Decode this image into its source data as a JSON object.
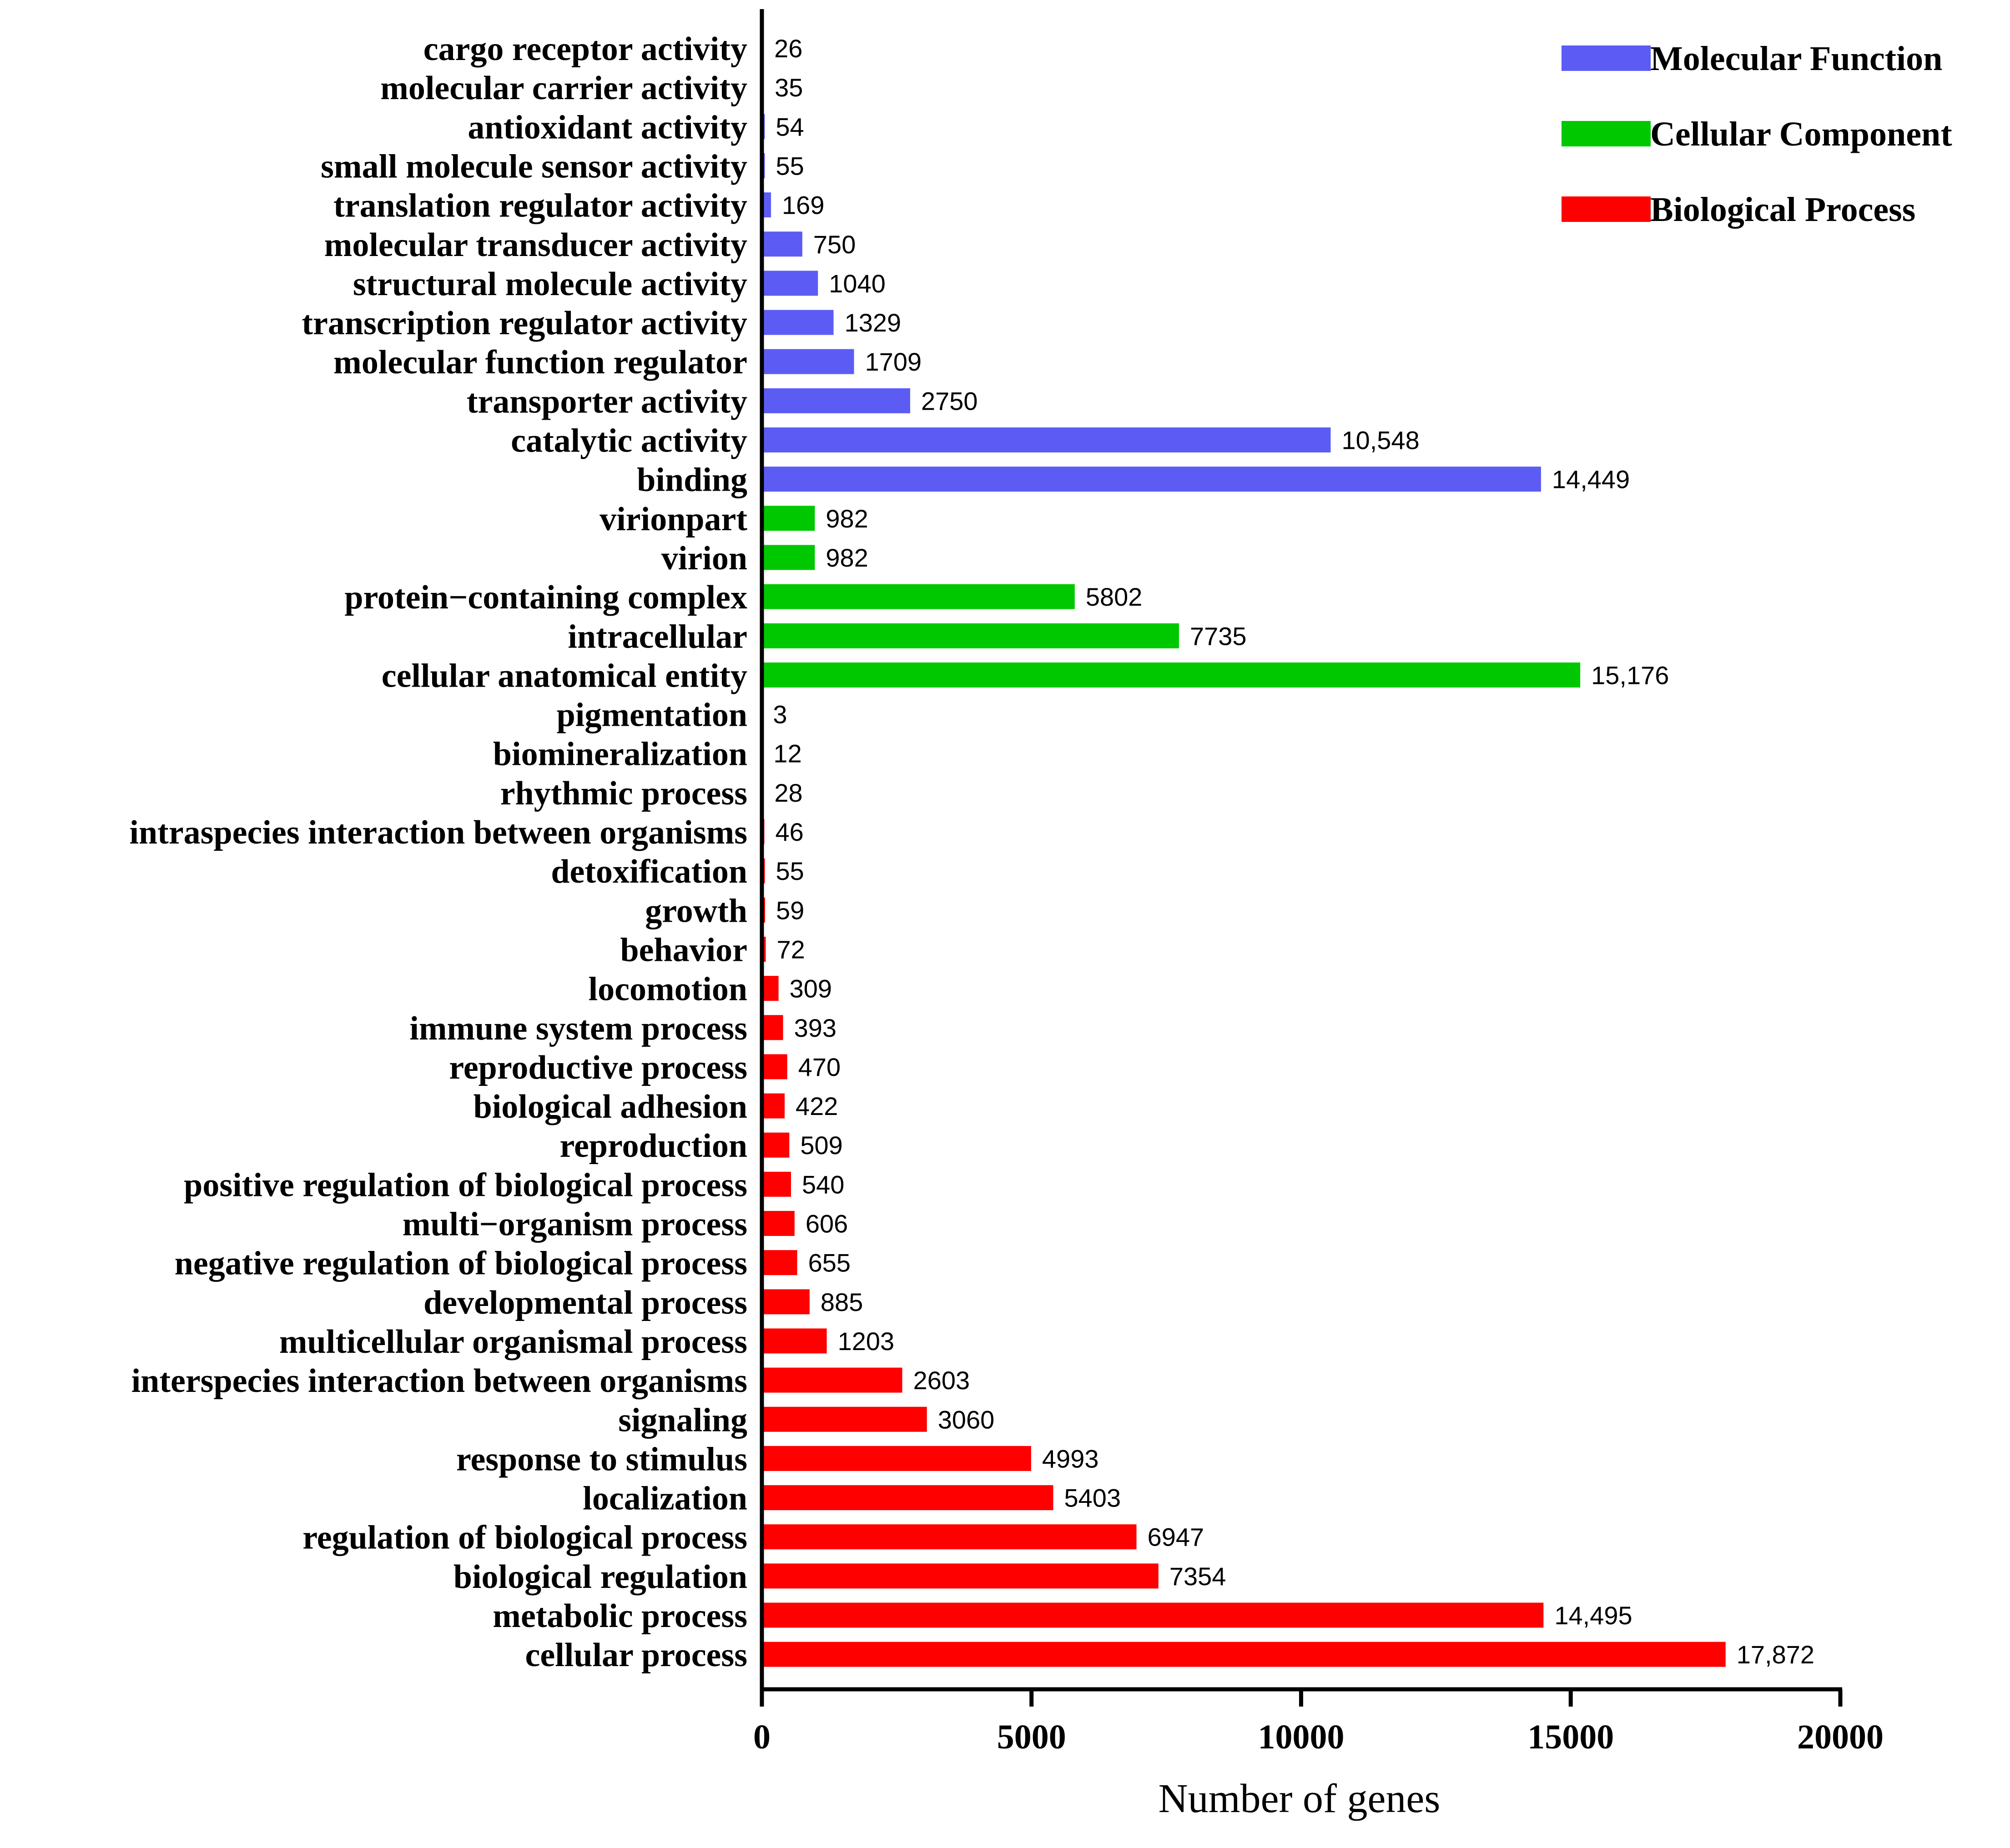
{
  "chart_data": {
    "type": "bar",
    "orientation": "horizontal",
    "title": "",
    "xlabel": "Number of genes",
    "ylabel": "",
    "xlim": [
      0,
      20000
    ],
    "xticks": [
      0,
      5000,
      10000,
      15000,
      20000
    ],
    "xtick_labels": [
      "0",
      "5000",
      "10000",
      "15000",
      "20000"
    ],
    "legend_position": "top-right",
    "series": [
      {
        "name": "Molecular Function",
        "color": "#5c5cf5",
        "categories": [
          "cargo receptor activity",
          "molecular carrier activity",
          "antioxidant activity",
          "small molecule sensor activity",
          "translation regulator activity",
          "molecular transducer activity",
          "structural molecule activity",
          "transcription regulator activity",
          "molecular function regulator",
          "transporter activity",
          "catalytic activity",
          "binding"
        ],
        "values": [
          26,
          35,
          54,
          55,
          169,
          750,
          1040,
          1329,
          1709,
          2750,
          10548,
          14449
        ],
        "value_labels": [
          "26",
          "35",
          "54",
          "55",
          "169",
          "750",
          "1040",
          "1329",
          "1709",
          "2750",
          "10,548",
          "14,449"
        ]
      },
      {
        "name": "Cellular Component",
        "color": "#00c800",
        "categories": [
          "virionpart",
          "virion",
          "protein−containing complex",
          "intracellular",
          "cellular anatomical entity"
        ],
        "values": [
          982,
          982,
          5802,
          7735,
          15176
        ],
        "value_labels": [
          "982",
          "982",
          "5802",
          "7735",
          "15,176"
        ]
      },
      {
        "name": "Biological Process",
        "color": "#ff0000",
        "categories": [
          "pigmentation",
          "biomineralization",
          "rhythmic process",
          "intraspecies interaction between organisms",
          "detoxification",
          "growth",
          "behavior",
          "locomotion",
          "immune system process",
          "reproductive process",
          "biological adhesion",
          "reproduction",
          "positive regulation of biological process",
          "multi−organism process",
          "negative regulation of biological process",
          "developmental process",
          "multicellular organismal process",
          "interspecies interaction between organisms",
          "signaling",
          "response to stimulus",
          "localization",
          "regulation of biological process",
          "biological regulation",
          "metabolic process",
          "cellular process"
        ],
        "values": [
          3,
          12,
          28,
          46,
          55,
          59,
          72,
          309,
          393,
          470,
          422,
          509,
          540,
          606,
          655,
          885,
          1203,
          2603,
          3060,
          4993,
          5403,
          6947,
          7354,
          14495,
          17872
        ],
        "value_labels": [
          "3",
          "12",
          "28",
          "46",
          "55",
          "59",
          "72",
          "309",
          "393",
          "470",
          "422",
          "509",
          "540",
          "606",
          "655",
          "885",
          "1203",
          "2603",
          "3060",
          "4993",
          "5403",
          "6947",
          "7354",
          "14,495",
          "17,872"
        ]
      }
    ]
  }
}
